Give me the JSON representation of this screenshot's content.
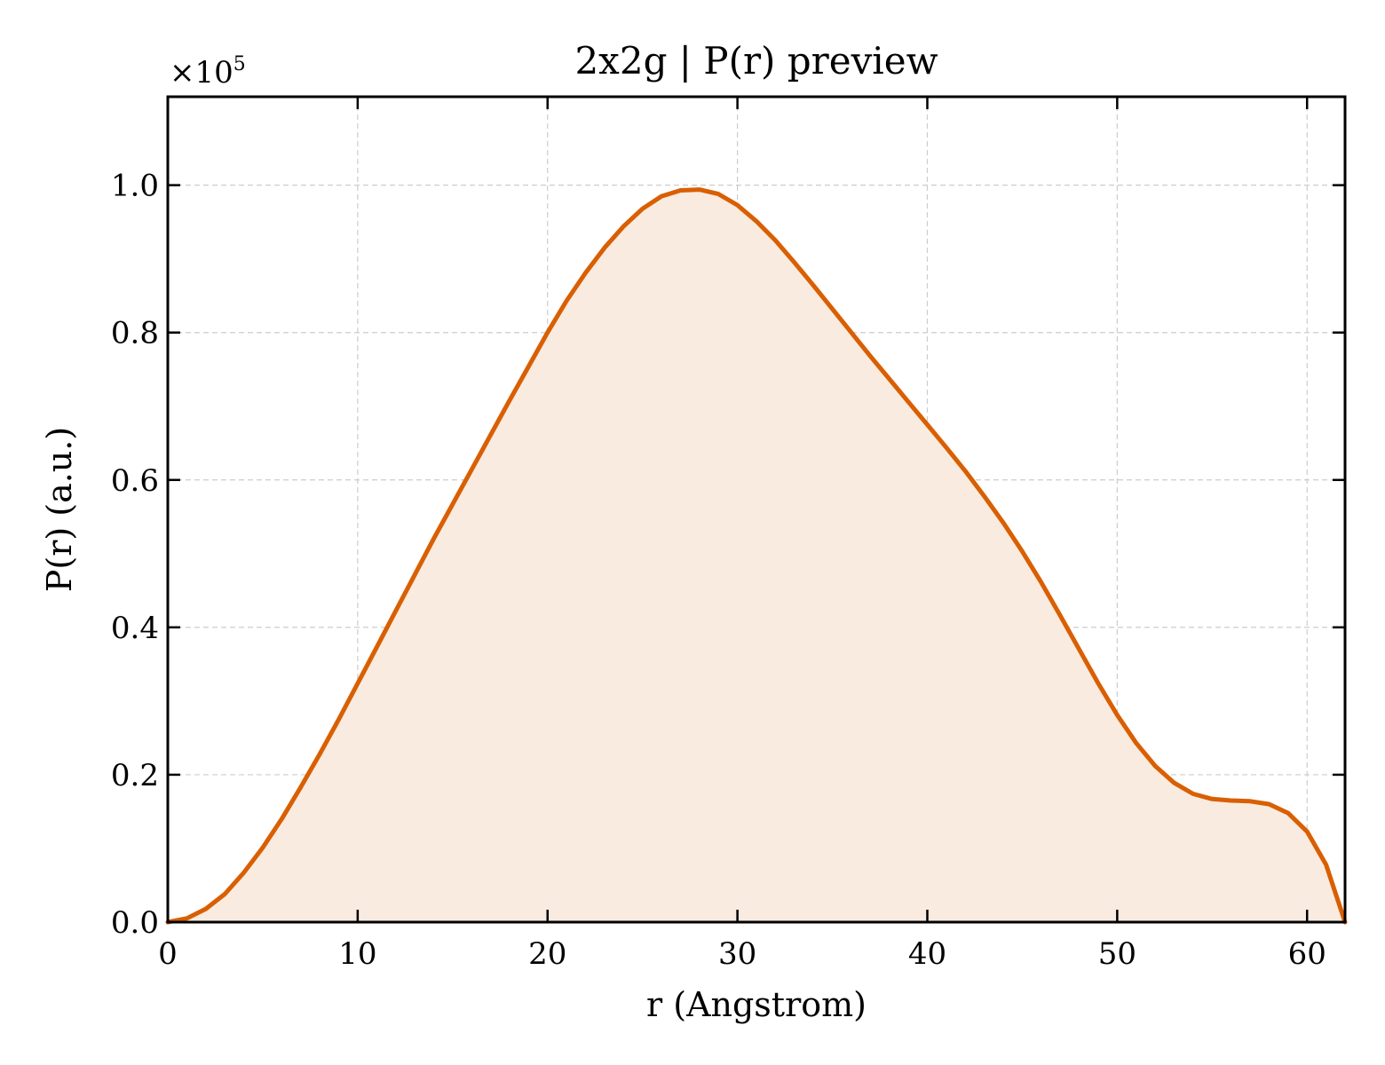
{
  "chart_data": {
    "type": "area",
    "title": "2x2g | P(r) preview",
    "xlabel": "r (Angstrom)",
    "ylabel": "P(r) (a.u.)",
    "y_scale_label": "×10⁵",
    "y_scale_base": "×10",
    "y_scale_exponent": "5",
    "xlim": [
      0,
      62
    ],
    "ylim": [
      0,
      1.12
    ],
    "x_ticks": [
      0,
      10,
      20,
      30,
      40,
      50,
      60
    ],
    "x_tick_labels": [
      "0",
      "10",
      "20",
      "30",
      "40",
      "50",
      "60"
    ],
    "y_ticks": [
      0.0,
      0.2,
      0.4,
      0.6,
      0.8,
      1.0
    ],
    "y_tick_labels": [
      "0.0",
      "0.2",
      "0.4",
      "0.6",
      "0.8",
      "1.0"
    ],
    "grid": true,
    "line_color": "#d95f02",
    "fill_color": "#f9ebe0",
    "x": [
      0,
      1,
      2,
      3,
      4,
      5,
      6,
      7,
      8,
      9,
      10,
      11,
      12,
      13,
      14,
      15,
      16,
      17,
      18,
      19,
      20,
      21,
      22,
      23,
      24,
      25,
      26,
      27,
      28,
      29,
      30,
      31,
      32,
      33,
      34,
      35,
      36,
      37,
      38,
      39,
      40,
      41,
      42,
      43,
      44,
      45,
      46,
      47,
      48,
      49,
      50,
      51,
      52,
      53,
      54,
      55,
      56,
      57,
      58,
      59,
      60,
      61,
      62
    ],
    "y": [
      0.0,
      0.005,
      0.018,
      0.038,
      0.067,
      0.101,
      0.14,
      0.183,
      0.228,
      0.275,
      0.324,
      0.373,
      0.422,
      0.471,
      0.52,
      0.567,
      0.614,
      0.661,
      0.708,
      0.754,
      0.8,
      0.843,
      0.881,
      0.915,
      0.944,
      0.968,
      0.985,
      0.993,
      0.994,
      0.988,
      0.973,
      0.951,
      0.925,
      0.895,
      0.864,
      0.832,
      0.8,
      0.768,
      0.737,
      0.706,
      0.675,
      0.644,
      0.612,
      0.578,
      0.542,
      0.503,
      0.461,
      0.416,
      0.37,
      0.324,
      0.281,
      0.243,
      0.212,
      0.189,
      0.174,
      0.167,
      0.165,
      0.164,
      0.16,
      0.148,
      0.123,
      0.078,
      0.0
    ]
  }
}
